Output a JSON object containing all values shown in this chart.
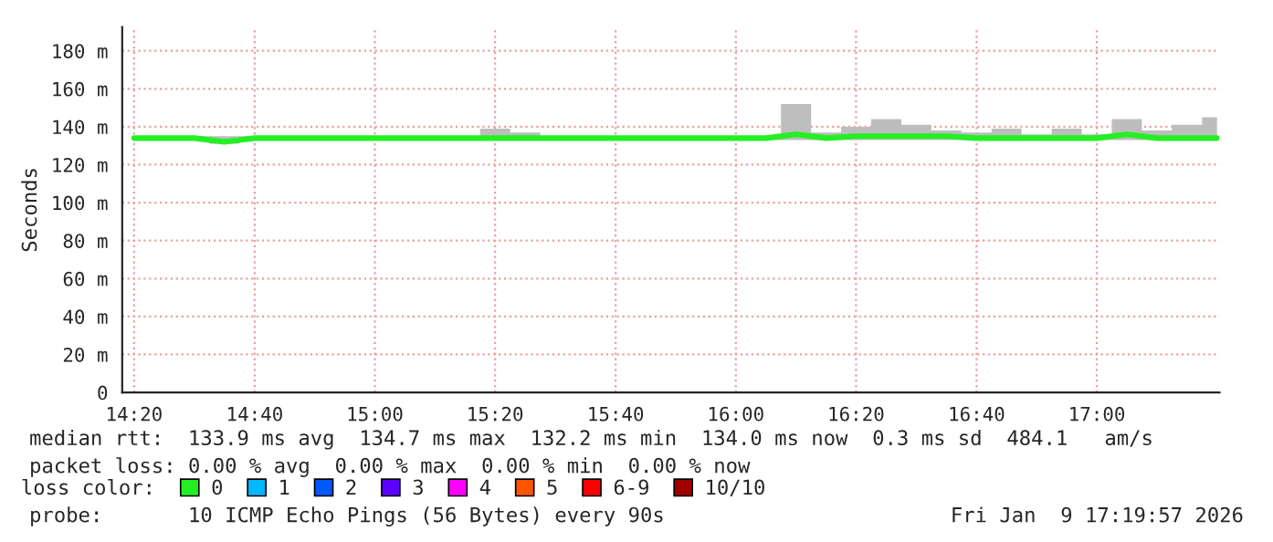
{
  "chart_data": {
    "type": "line",
    "ylabel": "Seconds",
    "x": [
      14.333,
      14.417,
      14.5,
      14.583,
      14.667,
      14.75,
      14.833,
      14.917,
      15.0,
      15.083,
      15.167,
      15.25,
      15.333,
      15.417,
      15.5,
      15.583,
      15.667,
      15.75,
      15.833,
      15.917,
      16.0,
      16.083,
      16.167,
      16.25,
      16.333,
      16.417,
      16.5,
      16.583,
      16.667,
      16.75,
      16.833,
      16.917,
      17.0,
      17.083,
      17.167,
      17.25,
      17.333
    ],
    "series": [
      {
        "name": "0",
        "color": "#22f022",
        "values": [
          134,
          134,
          134,
          132,
          134,
          134,
          134,
          134,
          134,
          134,
          134,
          134,
          134,
          134,
          134,
          134,
          134,
          134,
          134,
          134,
          134,
          134,
          136,
          134,
          135,
          135,
          135,
          135,
          134,
          134,
          134,
          134,
          134,
          136,
          134,
          134,
          134
        ],
        "lower": [
          133,
          133,
          133,
          131,
          133,
          133,
          133,
          133,
          133,
          133,
          133,
          133,
          133,
          133,
          133,
          133,
          133,
          133,
          133,
          133,
          133,
          133,
          133,
          133,
          133,
          133,
          133,
          133,
          133,
          133,
          133,
          133,
          133,
          133,
          133,
          133,
          133
        ],
        "upper": [
          135,
          135,
          135,
          135,
          135,
          135,
          135,
          135,
          135,
          135,
          135,
          135,
          139,
          137,
          135,
          135,
          135,
          135,
          135,
          135,
          135,
          135,
          152,
          137,
          140,
          144,
          141,
          138,
          137,
          139,
          136,
          139,
          136,
          144,
          138,
          141,
          145
        ]
      },
      {
        "name": "1",
        "color": "#00b8ff",
        "values": [
          null,
          null,
          null,
          null,
          null,
          null,
          null,
          null,
          null,
          null,
          null,
          null,
          null,
          null,
          null,
          null,
          null,
          null,
          null,
          null,
          null,
          null,
          null,
          null,
          null,
          null,
          null,
          null,
          null,
          null,
          null,
          null,
          null,
          null,
          null,
          null,
          null
        ]
      },
      {
        "name": "2",
        "color": "#0059ff",
        "values": [
          null,
          null,
          null,
          null,
          null,
          null,
          null,
          null,
          null,
          null,
          null,
          null,
          null,
          null,
          null,
          null,
          null,
          null,
          null,
          null,
          null,
          null,
          null,
          null,
          null,
          null,
          null,
          null,
          null,
          null,
          null,
          null,
          null,
          null,
          null,
          null,
          null
        ]
      },
      {
        "name": "3",
        "color": "#5e00ff",
        "values": [
          null,
          null,
          null,
          null,
          null,
          null,
          null,
          null,
          null,
          null,
          null,
          null,
          null,
          null,
          null,
          null,
          null,
          null,
          null,
          null,
          null,
          null,
          null,
          null,
          null,
          null,
          null,
          null,
          null,
          null,
          null,
          null,
          null,
          null,
          null,
          null,
          null
        ]
      },
      {
        "name": "4",
        "color": "#ff00ff",
        "values": [
          null,
          null,
          null,
          null,
          null,
          null,
          null,
          null,
          null,
          null,
          null,
          null,
          null,
          null,
          null,
          null,
          null,
          null,
          null,
          null,
          null,
          null,
          null,
          null,
          null,
          null,
          null,
          null,
          null,
          null,
          null,
          null,
          null,
          null,
          null,
          null,
          null
        ]
      },
      {
        "name": "5",
        "color": "#ff5500",
        "values": [
          null,
          null,
          null,
          null,
          null,
          null,
          null,
          null,
          null,
          null,
          null,
          null,
          null,
          null,
          null,
          null,
          null,
          null,
          null,
          null,
          null,
          null,
          null,
          null,
          null,
          null,
          null,
          null,
          null,
          null,
          null,
          null,
          null,
          null,
          null,
          null,
          null
        ]
      },
      {
        "name": "6-9",
        "color": "#ff0000",
        "values": [
          null,
          null,
          null,
          null,
          null,
          null,
          null,
          null,
          null,
          null,
          null,
          null,
          null,
          null,
          null,
          null,
          null,
          null,
          null,
          null,
          null,
          null,
          null,
          null,
          null,
          null,
          null,
          null,
          null,
          null,
          null,
          null,
          null,
          null,
          null,
          null,
          null
        ]
      },
      {
        "name": "10/10",
        "color": "#a10000",
        "values": [
          null,
          null,
          null,
          null,
          null,
          null,
          null,
          null,
          null,
          null,
          null,
          null,
          null,
          null,
          null,
          null,
          null,
          null,
          null,
          null,
          null,
          null,
          null,
          null,
          null,
          null,
          null,
          null,
          null,
          null,
          null,
          null,
          null,
          null,
          null,
          null,
          null
        ]
      }
    ],
    "legend": "bottom left",
    "legend_title": "loss color:",
    "xlim": [
      14.3,
      17.34
    ],
    "xticks": [
      {
        "value": 14.333,
        "label": "14:20"
      },
      {
        "value": 14.667,
        "label": "14:40"
      },
      {
        "value": 15.0,
        "label": "15:00"
      },
      {
        "value": 15.333,
        "label": "15:20"
      },
      {
        "value": 15.667,
        "label": "15:40"
      },
      {
        "value": 16.0,
        "label": "16:00"
      },
      {
        "value": 16.333,
        "label": "16:20"
      },
      {
        "value": 16.667,
        "label": "16:40"
      },
      {
        "value": 17.0,
        "label": "17:00"
      }
    ],
    "ylim": [
      0,
      192.5
    ],
    "yticks": [
      0,
      {
        "value": 20,
        "label": "20 m"
      },
      {
        "value": 40,
        "label": "40 m"
      },
      {
        "value": 60,
        "label": "60 m"
      },
      {
        "value": 80,
        "label": "80 m"
      },
      {
        "value": 100,
        "label": "100 m"
      },
      {
        "value": 120,
        "label": "120 m"
      },
      {
        "value": 140,
        "label": "140 m"
      },
      {
        "value": 160,
        "label": "160 m"
      },
      {
        "value": 180,
        "label": "180 m"
      }
    ],
    "grid": true,
    "annotations": [
      "median rtt:  133.9 ms avg  134.7 ms max  132.2 ms min  134.0 ms now  0.3 ms sd  484.1   am/s",
      "packet loss: 0.00 % avg  0.00 % max  0.00 % min  0.00 % now",
      "probe:       10 ICMP Echo Pings (56 Bytes) every 90s",
      "Fri Jan  9 17:19:57 2026"
    ]
  }
}
